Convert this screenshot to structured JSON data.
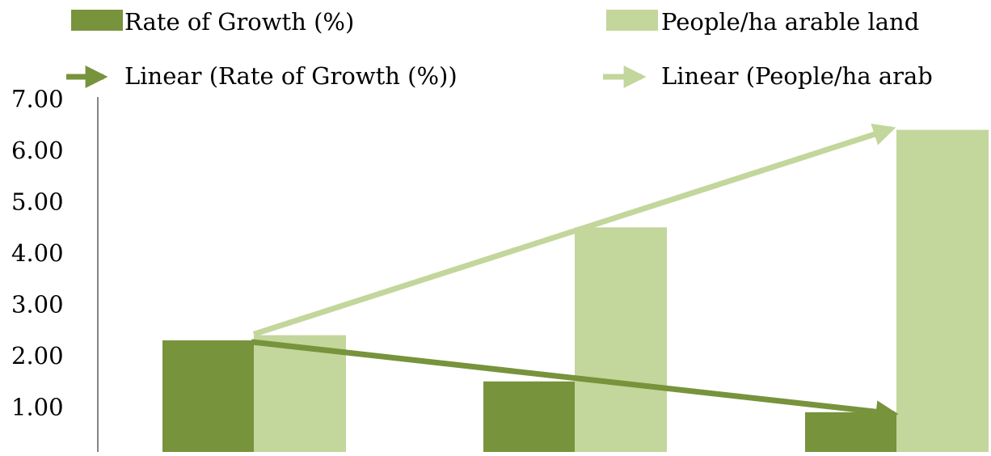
{
  "chart_data": {
    "type": "bar",
    "categories": [
      "",
      "",
      ""
    ],
    "series": [
      {
        "name": "Rate of Growth (%)",
        "values": [
          2.3,
          1.5,
          0.9
        ],
        "color": "#77933C"
      },
      {
        "name": "People/ha arable land",
        "values": [
          2.4,
          4.5,
          6.4
        ],
        "color": "#C3D69B"
      }
    ],
    "trendlines": [
      {
        "name": "Linear (Rate of Growth (%))",
        "series": "Rate of Growth (%)",
        "kind": "linear",
        "start": 2.27,
        "end": 0.87,
        "color": "#77933C"
      },
      {
        "name": "Linear (People/ha arab",
        "series": "People/ha arable land",
        "kind": "linear",
        "start": 2.42,
        "end": 6.42,
        "color": "#C3D69B"
      }
    ],
    "yticks": [
      "1.00",
      "2.00",
      "3.00",
      "4.00",
      "5.00",
      "6.00",
      "7.00"
    ],
    "ylim": [
      0,
      7
    ],
    "grid": false,
    "legend_position": "top"
  }
}
